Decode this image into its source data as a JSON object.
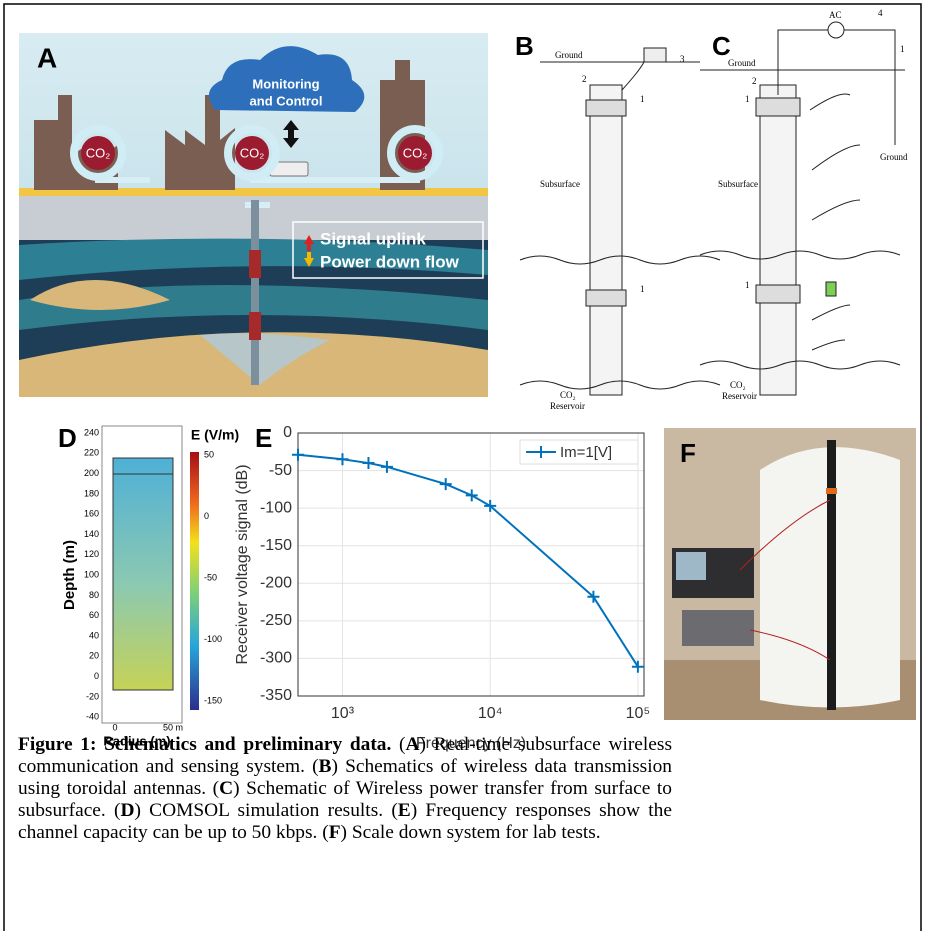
{
  "panels": {
    "a": {
      "label": "A",
      "cloud": [
        "Monitoring",
        "and Control"
      ],
      "co2": [
        "CO₂",
        "CO₂",
        "CO₂"
      ],
      "legend": [
        "Signal uplink",
        "Power down flow"
      ]
    },
    "b": {
      "label": "B",
      "ground": "Ground",
      "layer": "Subsurface",
      "reservoir": [
        "CO₂",
        "Reservoir"
      ],
      "callouts": [
        "3",
        "2",
        "1",
        "1"
      ]
    },
    "c": {
      "label": "C",
      "source": "AC",
      "ground_top": "Ground",
      "ground_right": "Ground",
      "layer": "Subsurface",
      "reservoir": [
        "CO₂",
        "Reservoir"
      ],
      "callouts": [
        "4",
        "2",
        "1",
        "1",
        "1"
      ]
    },
    "d": {
      "label": "D",
      "ylabel": "Depth (m)",
      "xlabel": "Radius (m)",
      "yticks": [
        "240",
        "220",
        "200",
        "180",
        "160",
        "140",
        "120",
        "100",
        "80",
        "60",
        "40",
        "20",
        "0",
        "-20",
        "-40"
      ],
      "xticks": [
        "0",
        "50 m"
      ],
      "colorbar_title": "E (V/m)",
      "colorbar_ticks": [
        "50",
        "0",
        "-50",
        "-100",
        "-150"
      ]
    },
    "f": {
      "label": "F"
    }
  },
  "chart_data": {
    "type": "line",
    "panel_label": "E",
    "xlabel": "Frequency (Hz)",
    "ylabel": "Receiver voltage signal (dB)",
    "log_x": true,
    "grid": true,
    "x": [
      500,
      1000,
      1500,
      2000,
      5000,
      7500,
      10000,
      50000,
      100000
    ],
    "series": [
      {
        "name": "Im=1[V]",
        "color": "#0072bd",
        "values": [
          -29,
          -35,
          -40,
          -45,
          -68,
          -83,
          -97,
          -218,
          -311
        ]
      }
    ],
    "xlim": [
      500,
      110000
    ],
    "xticks": [
      {
        "value": 1000,
        "label": "10³"
      },
      {
        "value": 10000,
        "label": "10⁴"
      },
      {
        "value": 100000,
        "label": "10⁵"
      }
    ],
    "ylim": [
      -350,
      0
    ],
    "yticks": [
      0,
      -50,
      -100,
      -150,
      -200,
      -250,
      -300,
      -350
    ]
  },
  "caption": [
    {
      "text": "Figure 1: Schematics and preliminary data.",
      "bold": true
    },
    {
      "text": " (",
      "bold": false
    },
    {
      "text": "A",
      "bold": true
    },
    {
      "text": ") Real-time subsurface wireless communication and sensing system. (",
      "bold": false
    },
    {
      "text": "B",
      "bold": true
    },
    {
      "text": ") Schematics of wireless data transmission using toroidal antennas. (",
      "bold": false
    },
    {
      "text": "C",
      "bold": true
    },
    {
      "text": ") Schematic of Wireless power transfer from surface to subsurface. (",
      "bold": false
    },
    {
      "text": "D",
      "bold": true
    },
    {
      "text": ") COMSOL simulation results. (",
      "bold": false
    },
    {
      "text": "E",
      "bold": true
    },
    {
      "text": ") Frequency responses show the channel capacity can be up to 50 kbps. (",
      "bold": false
    },
    {
      "text": "F",
      "bold": true
    },
    {
      "text": ") Scale down system for lab tests.",
      "bold": false
    }
  ]
}
